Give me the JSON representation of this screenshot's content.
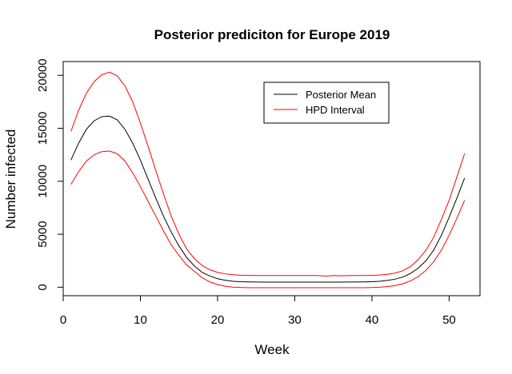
{
  "chart_data": {
    "type": "line",
    "title": "Posterior prediciton for Europe 2019",
    "xlabel": "Week",
    "ylabel": "Number infected",
    "xlim": [
      0,
      54
    ],
    "ylim": [
      -800,
      21300
    ],
    "xticks": [
      0,
      10,
      20,
      30,
      40,
      50
    ],
    "yticks": [
      0,
      5000,
      10000,
      15000,
      20000
    ],
    "grid": false,
    "legend_position": "top-right",
    "x": [
      1,
      2,
      3,
      4,
      5,
      6,
      7,
      8,
      9,
      10,
      11,
      12,
      13,
      14,
      15,
      16,
      17,
      18,
      19,
      20,
      21,
      22,
      23,
      24,
      25,
      26,
      27,
      28,
      29,
      30,
      31,
      32,
      33,
      34,
      35,
      36,
      37,
      38,
      39,
      40,
      41,
      42,
      43,
      44,
      45,
      46,
      47,
      48,
      49,
      50,
      51,
      52
    ],
    "series": [
      {
        "name": "Posterior Mean",
        "color": "#000000",
        "values": [
          12000,
          13600,
          14900,
          15700,
          16100,
          16150,
          15800,
          14900,
          13600,
          12000,
          10200,
          8400,
          6700,
          5200,
          3900,
          2800,
          2000,
          1400,
          1050,
          800,
          650,
          560,
          520,
          500,
          490,
          480,
          480,
          480,
          480,
          480,
          480,
          480,
          480,
          480,
          480,
          480,
          490,
          490,
          500,
          520,
          560,
          640,
          760,
          960,
          1300,
          1800,
          2500,
          3500,
          4900,
          6600,
          8400,
          10300
        ]
      },
      {
        "name": "HPD Interval",
        "color": "#ff0000",
        "values": [
          14700,
          16700,
          18300,
          19400,
          20050,
          20300,
          19950,
          19000,
          17500,
          15500,
          13300,
          11000,
          8800,
          6700,
          5000,
          3600,
          2700,
          2050,
          1650,
          1400,
          1260,
          1180,
          1130,
          1110,
          1100,
          1100,
          1100,
          1100,
          1100,
          1100,
          1100,
          1100,
          1100,
          1050,
          1100,
          1080,
          1100,
          1100,
          1100,
          1120,
          1150,
          1220,
          1330,
          1550,
          1950,
          2600,
          3500,
          4700,
          6400,
          8200,
          10400,
          12600
        ]
      },
      {
        "name": "",
        "color": "#ff0000",
        "values": [
          9700,
          10900,
          11900,
          12500,
          12800,
          12850,
          12600,
          11900,
          10800,
          9500,
          8100,
          6700,
          5300,
          4000,
          3000,
          2100,
          1500,
          900,
          500,
          250,
          100,
          0,
          -20,
          -50,
          -50,
          -50,
          -50,
          -50,
          -50,
          -50,
          -50,
          -50,
          -50,
          -50,
          -50,
          -50,
          -50,
          -50,
          -50,
          -30,
          0,
          60,
          150,
          320,
          600,
          1000,
          1600,
          2400,
          3500,
          4900,
          6500,
          8200
        ]
      }
    ]
  }
}
